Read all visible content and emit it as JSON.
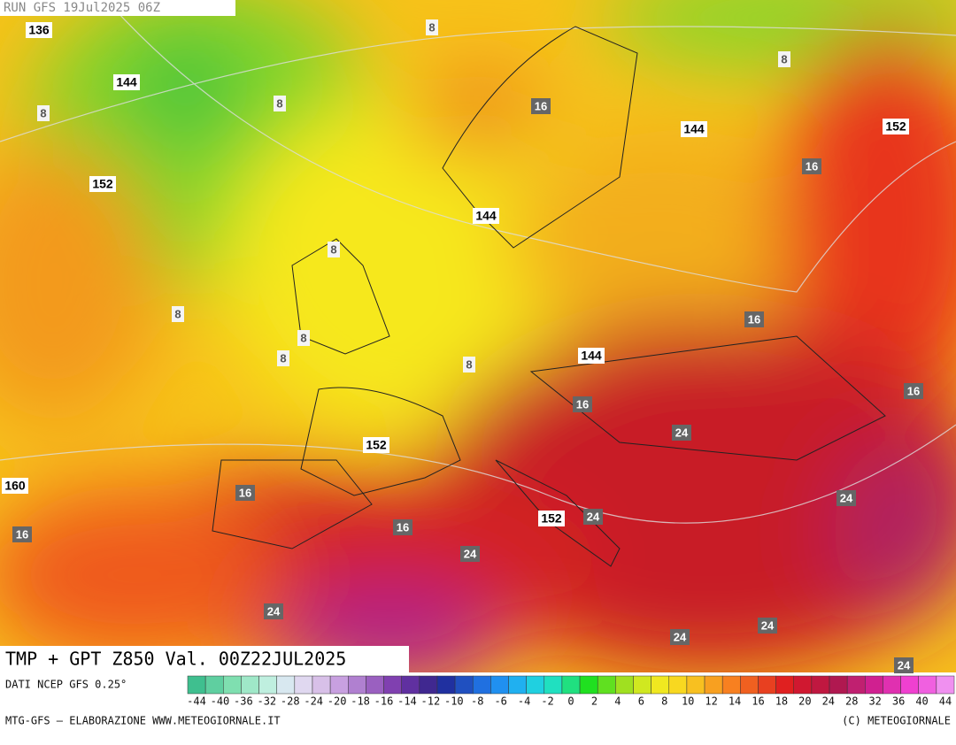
{
  "header": {
    "run": "RUN GFS 19Jul2025 06Z"
  },
  "map": {
    "labels": [
      {
        "text": "136",
        "kind": "height"
      },
      {
        "text": "144",
        "kind": "height"
      },
      {
        "text": "8",
        "kind": "temp-low"
      },
      {
        "text": "8",
        "kind": "temp-low"
      },
      {
        "text": "8",
        "kind": "temp-low"
      },
      {
        "text": "8",
        "kind": "temp-low"
      },
      {
        "text": "152",
        "kind": "height"
      },
      {
        "text": "16",
        "kind": "temp"
      },
      {
        "text": "144",
        "kind": "height"
      },
      {
        "text": "152",
        "kind": "height"
      },
      {
        "text": "16",
        "kind": "temp"
      },
      {
        "text": "144",
        "kind": "height"
      },
      {
        "text": "8",
        "kind": "temp-low"
      },
      {
        "text": "8",
        "kind": "temp-low"
      },
      {
        "text": "8",
        "kind": "temp-low"
      },
      {
        "text": "8",
        "kind": "temp-low"
      },
      {
        "text": "8",
        "kind": "temp-low"
      },
      {
        "text": "16",
        "kind": "temp"
      },
      {
        "text": "144",
        "kind": "height"
      },
      {
        "text": "16",
        "kind": "temp"
      },
      {
        "text": "16",
        "kind": "temp"
      },
      {
        "text": "24",
        "kind": "temp"
      },
      {
        "text": "152",
        "kind": "height"
      },
      {
        "text": "160",
        "kind": "height"
      },
      {
        "text": "16",
        "kind": "temp"
      },
      {
        "text": "24",
        "kind": "temp"
      },
      {
        "text": "152",
        "kind": "height"
      },
      {
        "text": "24",
        "kind": "temp"
      },
      {
        "text": "16",
        "kind": "temp"
      },
      {
        "text": "16",
        "kind": "temp"
      },
      {
        "text": "24",
        "kind": "temp"
      },
      {
        "text": "24",
        "kind": "temp"
      },
      {
        "text": "24",
        "kind": "temp"
      },
      {
        "text": "24",
        "kind": "temp"
      },
      {
        "text": "24",
        "kind": "temp"
      }
    ]
  },
  "title": "TMP + GPT Z850 Val. 00Z22JUL2025",
  "source": "DATI NCEP GFS 0.25°",
  "colorbar": {
    "labels": [
      "-44",
      "-40",
      "-36",
      "-32",
      "-28",
      "-24",
      "-20",
      "-18",
      "-16",
      "-14",
      "-12",
      "-10",
      "-8",
      "-6",
      "-4",
      "-2",
      "0",
      "2",
      "4",
      "6",
      "8",
      "10",
      "12",
      "14",
      "16",
      "18",
      "20",
      "24",
      "28",
      "32",
      "36",
      "40",
      "44"
    ]
  },
  "footer": {
    "left": "MTG-GFS — ELABORAZIONE WWW.METEOGIORNALE.IT",
    "right": "(C) METEOGIORNALE"
  }
}
